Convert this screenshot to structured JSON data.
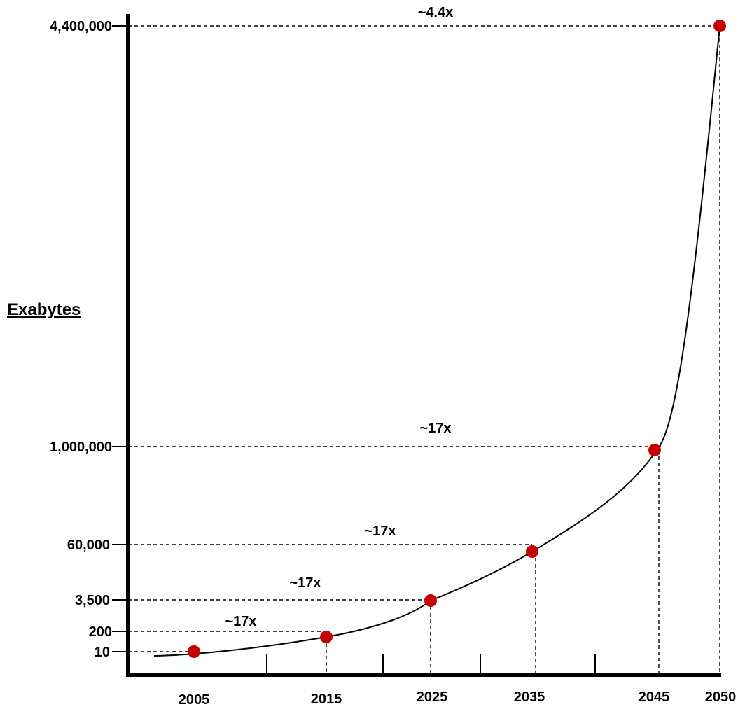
{
  "chart_data": {
    "type": "line",
    "title": "",
    "xlabel": "",
    "ylabel": "Exabytes",
    "x": [
      2005,
      2015,
      2025,
      2035,
      2045,
      2050
    ],
    "x_tick_labels": [
      "2005",
      "2015",
      "2025",
      "2035",
      "2045",
      "2050"
    ],
    "y_tick_labels": [
      "10",
      "200",
      "3,500",
      "60,000",
      "1,000,000",
      "4,400,000"
    ],
    "series": [
      {
        "values": [
          10,
          200,
          3500,
          60000,
          1000000,
          4400000
        ],
        "color": "#c40000"
      }
    ],
    "annotations": [
      "~17x",
      "~17x",
      "~17x",
      "~17x",
      "~4.4x"
    ],
    "grid": false,
    "legend": "none"
  }
}
